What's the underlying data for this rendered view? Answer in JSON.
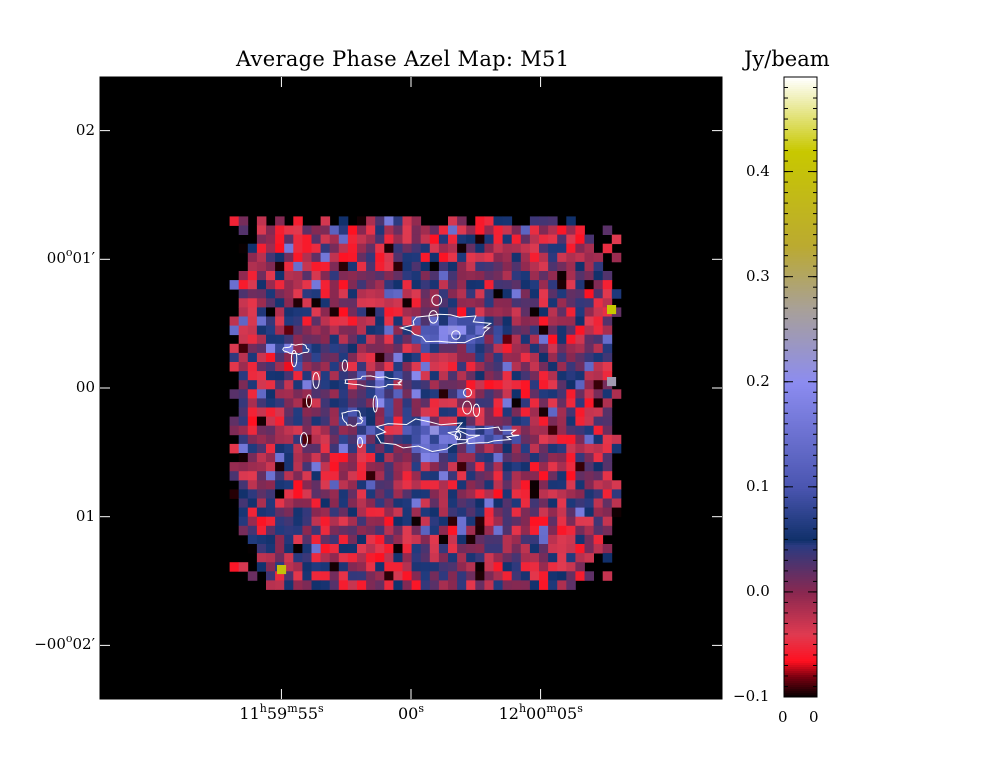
{
  "chart_data": {
    "type": "heatmap",
    "title": "Average  Phase Azel Map: M51",
    "colorbar": {
      "label": "Jy/beam",
      "min": -0.1,
      "max": 0.49,
      "ticks": [
        "0.4",
        "0.3",
        "0.2",
        "0.1",
        "0.0",
        "−0.1"
      ],
      "tick_values": [
        0.4,
        0.3,
        0.2,
        0.1,
        0.0,
        -0.1
      ],
      "bottom_labels": [
        "0",
        "0"
      ],
      "colormap": [
        {
          "v": -0.1,
          "c": "#000000"
        },
        {
          "v": -0.08,
          "c": "#7a0010"
        },
        {
          "v": -0.065,
          "c": "#ff1020"
        },
        {
          "v": -0.04,
          "c": "#e03a50"
        },
        {
          "v": 0.0,
          "c": "#8a2850"
        },
        {
          "v": 0.045,
          "c": "#2a3a80"
        },
        {
          "v": 0.05,
          "c": "#10306a"
        },
        {
          "v": 0.1,
          "c": "#4a55b0"
        },
        {
          "v": 0.2,
          "c": "#8c8cf0"
        },
        {
          "v": 0.27,
          "c": "#a8a098"
        },
        {
          "v": 0.33,
          "c": "#bbaa30"
        },
        {
          "v": 0.42,
          "c": "#c8c800"
        },
        {
          "v": 0.49,
          "c": "#ffffff"
        }
      ]
    },
    "x_ticks": [
      {
        "h": "11",
        "m": "59",
        "s": "55",
        "ra_sec": -5
      },
      {
        "h": "",
        "m": "",
        "s": "00",
        "ra_sec": 0
      },
      {
        "h": "12",
        "m": "00",
        "s": "05",
        "ra_sec": 5
      }
    ],
    "y_ticks": [
      {
        "text": "02",
        "deg": "",
        "arcmin": "",
        "dec_arcsec": 120
      },
      {
        "text": "01′",
        "deg": "00",
        "arcmin": "",
        "dec_arcsec": 60
      },
      {
        "text": "00",
        "deg": "",
        "arcmin": "",
        "dec_arcsec": 0
      },
      {
        "text": "01",
        "deg": "",
        "arcmin": "",
        "dec_arcsec": -60
      },
      {
        "text": "02′",
        "deg": "−00",
        "arcmin": "",
        "dec_arcsec": -120
      }
    ],
    "x_range_ra_sec": [
      -12,
      12
    ],
    "y_range_dec_arcsec": [
      -145,
      145
    ],
    "map_extent_ra_sec": [
      -7,
      8
    ],
    "map_extent_dec_arcsec": [
      -95,
      80
    ],
    "background": "#000000",
    "contour_color": "#ffffff",
    "emission_regions": [
      {
        "ra_sec": 1.3,
        "dec_arcsec": 28,
        "peak": 0.2
      },
      {
        "ra_sec": -1.4,
        "dec_arcsec": 3,
        "peak": 0.12
      },
      {
        "ra_sec": 0.5,
        "dec_arcsec": -22,
        "peak": 0.14
      },
      {
        "ra_sec": 2.8,
        "dec_arcsec": -22,
        "peak": 0.11
      },
      {
        "ra_sec": -4.4,
        "dec_arcsec": 18,
        "peak": 0.08
      },
      {
        "ra_sec": -2.3,
        "dec_arcsec": -14,
        "peak": 0.09
      }
    ]
  }
}
